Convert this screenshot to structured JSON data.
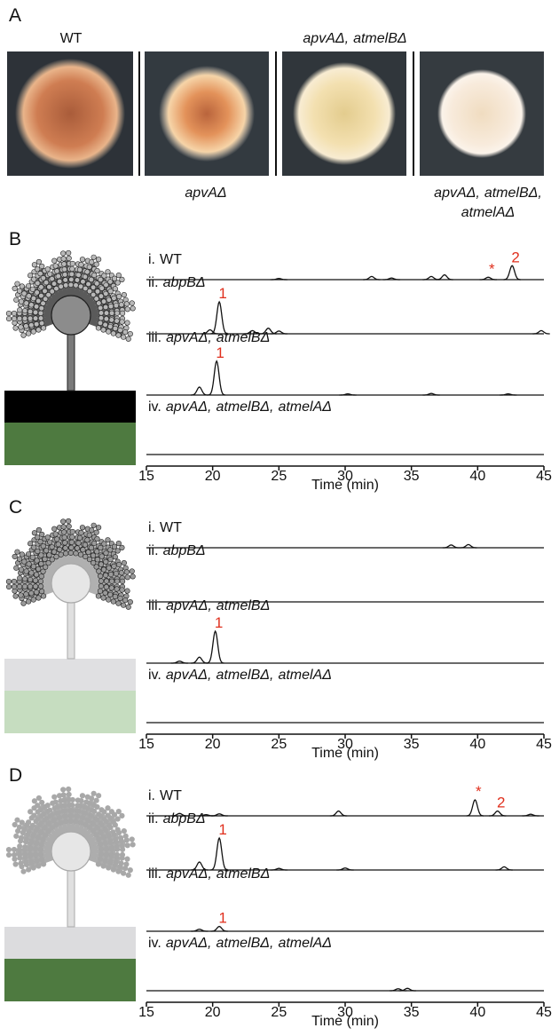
{
  "panel_a": {
    "label": "A",
    "top_left": "WT",
    "top_right": [
      "apvAΔ,",
      "atmelBΔ"
    ],
    "bottom_left": [
      "apvAΔ"
    ],
    "bottom_right_line1": [
      "apvAΔ,",
      "atmelBΔ,"
    ],
    "bottom_right_line2": [
      "atmelAΔ"
    ]
  },
  "chromatograms": [
    {
      "label": "B",
      "xlim": [
        15,
        45
      ],
      "xticks": [
        15,
        20,
        25,
        30,
        35,
        40,
        45
      ],
      "xlabel": "Time (min)",
      "traces": [
        {
          "number": "i.",
          "strain": [
            "WT"
          ],
          "italic": false,
          "peaks": [
            {
              "time": 25,
              "height": 3
            },
            {
              "time": 32,
              "height": 8
            },
            {
              "time": 33.5,
              "height": 4
            },
            {
              "time": 36.5,
              "height": 8
            },
            {
              "time": 37.5,
              "height": 12
            },
            {
              "time": 40.8,
              "height": 6,
              "label": "*"
            },
            {
              "time": 42.6,
              "height": 35,
              "label": "2"
            }
          ]
        },
        {
          "number": "ii.",
          "strain": [
            "abpBΔ"
          ],
          "italic": true,
          "peaks": [
            {
              "time": 19.8,
              "height": 10
            },
            {
              "time": 20.5,
              "height": 80,
              "label": "1"
            },
            {
              "time": 23,
              "height": 8
            },
            {
              "time": 24.2,
              "height": 14
            },
            {
              "time": 25,
              "height": 7
            },
            {
              "time": 44.8,
              "height": 8
            }
          ]
        },
        {
          "number": "iii.",
          "strain": [
            "apvAΔ,",
            "atmelBΔ"
          ],
          "italic": true,
          "peaks": [
            {
              "time": 19,
              "height": 20
            },
            {
              "time": 20.3,
              "height": 85,
              "label": "1"
            },
            {
              "time": 30.2,
              "height": 3
            },
            {
              "time": 36.5,
              "height": 4
            },
            {
              "time": 42.3,
              "height": 3
            }
          ]
        },
        {
          "number": "iv.",
          "strain": [
            "apvAΔ,",
            "atmelBΔ,",
            "atmelAΔ"
          ],
          "italic": true,
          "peaks": []
        }
      ]
    },
    {
      "label": "C",
      "xlim": [
        15,
        45
      ],
      "xticks": [
        15,
        20,
        25,
        30,
        35,
        40,
        45
      ],
      "xlabel": "Time (min)",
      "traces": [
        {
          "number": "i.",
          "strain": [
            "WT"
          ],
          "italic": false,
          "peaks": [
            {
              "time": 38,
              "height": 7
            },
            {
              "time": 39.3,
              "height": 8
            }
          ]
        },
        {
          "number": "ii.",
          "strain": [
            "abpBΔ"
          ],
          "italic": true,
          "peaks": []
        },
        {
          "number": "iii.",
          "strain": [
            "apvAΔ,",
            "atmelBΔ"
          ],
          "italic": true,
          "peaks": [
            {
              "time": 17.5,
              "height": 5
            },
            {
              "time": 19,
              "height": 15
            },
            {
              "time": 20.2,
              "height": 80,
              "label": "1"
            }
          ]
        },
        {
          "number": "iv.",
          "strain": [
            "apvAΔ,",
            "atmelBΔ,",
            "atmelAΔ"
          ],
          "italic": true,
          "peaks": []
        }
      ]
    },
    {
      "label": "D",
      "xlim": [
        15,
        45
      ],
      "xticks": [
        15,
        20,
        25,
        30,
        35,
        40,
        45
      ],
      "xlabel": "Time (min)",
      "traces": [
        {
          "number": "i.",
          "strain": [
            "WT"
          ],
          "italic": false,
          "peaks": [
            {
              "time": 17.5,
              "height": 6
            },
            {
              "time": 19.5,
              "height": 3
            },
            {
              "time": 20.5,
              "height": 5
            },
            {
              "time": 29.5,
              "height": 12
            },
            {
              "time": 39.8,
              "height": 40,
              "label": "*"
            },
            {
              "time": 41.5,
              "height": 12,
              "label": "2"
            },
            {
              "time": 44,
              "height": 4
            }
          ]
        },
        {
          "number": "ii.",
          "strain": [
            "abpBΔ"
          ],
          "italic": true,
          "peaks": [
            {
              "time": 19,
              "height": 20
            },
            {
              "time": 20.5,
              "height": 80,
              "label": "1"
            },
            {
              "time": 25,
              "height": 4
            },
            {
              "time": 30,
              "height": 5
            },
            {
              "time": 42,
              "height": 8
            }
          ]
        },
        {
          "number": "iii.",
          "strain": [
            "apvAΔ,",
            "atmelBΔ"
          ],
          "italic": true,
          "peaks": [
            {
              "time": 19,
              "height": 5
            },
            {
              "time": 20.5,
              "height": 12,
              "label": "1"
            }
          ]
        },
        {
          "number": "iv.",
          "strain": [
            "apvAΔ,",
            "atmelBΔ,",
            "atmelAΔ"
          ],
          "italic": true,
          "peaks": [
            {
              "time": 34,
              "height": 5
            },
            {
              "time": 34.7,
              "height": 6
            }
          ]
        }
      ]
    }
  ]
}
